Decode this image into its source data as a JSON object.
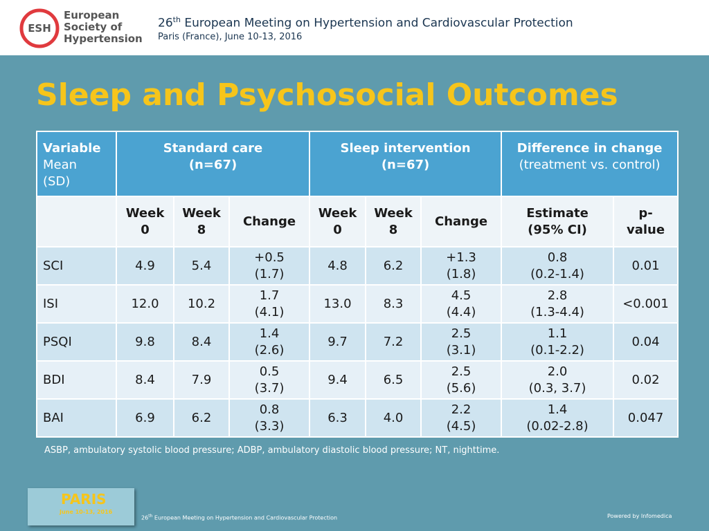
{
  "logo": {
    "abbr": "ESH",
    "name": [
      "European",
      "Society of",
      "Hypertension"
    ]
  },
  "header": {
    "ordinal": "26",
    "ordinal_suffix": "th",
    "meeting": " European Meeting on Hypertension and Cardiovascular Protection",
    "place": "Paris (France), June 10-13, 2016"
  },
  "title": "Sleep and Psychosocial Outcomes",
  "table": {
    "header_top": [
      [
        "Variable",
        "Mean",
        "(SD)"
      ],
      [
        "Standard care",
        "(n=67)"
      ],
      [
        "Sleep intervention",
        "(n=67)"
      ],
      [
        "Difference in change",
        "(treatment vs. control)"
      ]
    ],
    "header_sub": [
      [
        "Week",
        "0"
      ],
      [
        "Week",
        "8"
      ],
      [
        "Change"
      ],
      [
        "Week",
        "0"
      ],
      [
        "Week",
        "8"
      ],
      [
        "Change"
      ],
      [
        "Estimate",
        "(95% CI)"
      ],
      [
        "p-",
        "value"
      ]
    ],
    "rows": [
      [
        "SCI",
        "4.9",
        "5.4",
        [
          "+0.5",
          "(1.7)"
        ],
        "4.8",
        "6.2",
        [
          "+1.3",
          "(1.8)"
        ],
        [
          "0.8",
          "(0.2-1.4)"
        ],
        "0.01"
      ],
      [
        "ISI",
        "12.0",
        "10.2",
        [
          "1.7",
          "(4.1)"
        ],
        "13.0",
        "8.3",
        [
          "4.5",
          "(4.4)"
        ],
        [
          "2.8",
          "(1.3-4.4)"
        ],
        "<0.001"
      ],
      [
        "PSQI",
        "9.8",
        "8.4",
        [
          "1.4",
          "(2.6)"
        ],
        "9.7",
        "7.2",
        [
          "2.5",
          "(3.1)"
        ],
        [
          "1.1",
          "(0.1-2.2)"
        ],
        "0.04"
      ],
      [
        "BDI",
        "8.4",
        "7.9",
        [
          "0.5",
          "(3.7)"
        ],
        "9.4",
        "6.5",
        [
          "2.5",
          "(5.6)"
        ],
        [
          "2.0",
          "(0.3, 3.7)"
        ],
        "0.02"
      ],
      [
        "BAI",
        "6.9",
        "6.2",
        [
          "0.8",
          "(3.3)"
        ],
        "6.3",
        "4.0",
        [
          "2.2",
          "(4.5)"
        ],
        [
          "1.4",
          "(0.02-2.8)"
        ],
        "0.047"
      ]
    ]
  },
  "footnote": "ASBP, ambulatory systolic blood pressure; ADBP, ambulatory diastolic blood pressure; NT, nighttime.",
  "badge": {
    "city": "PARIS",
    "dates": "June 10-13, 2016"
  },
  "footer": {
    "ordinal": "26",
    "ordinal_suffix": "th",
    "meeting": " European Meeting on Hypertension and Cardiovascular Protection",
    "credit": "Powered by Infomedica"
  }
}
